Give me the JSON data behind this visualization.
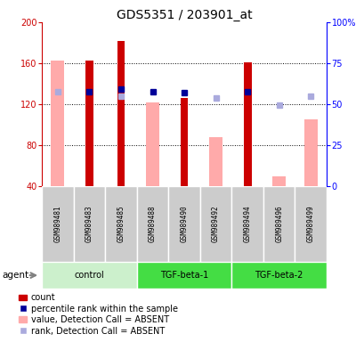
{
  "title": "GDS5351 / 203901_at",
  "samples": [
    "GSM989481",
    "GSM989483",
    "GSM989485",
    "GSM989488",
    "GSM989490",
    "GSM989492",
    "GSM989494",
    "GSM989496",
    "GSM989499"
  ],
  "groups": [
    {
      "label": "control",
      "indices": [
        0,
        1,
        2
      ],
      "color": "#ccf0cc"
    },
    {
      "label": "TGF-beta-1",
      "indices": [
        3,
        4,
        5
      ],
      "color": "#44dd44"
    },
    {
      "label": "TGF-beta-2",
      "indices": [
        6,
        7,
        8
      ],
      "color": "#44dd44"
    }
  ],
  "ylim_left": [
    40,
    200
  ],
  "ylim_right": [
    0,
    100
  ],
  "yticks_left": [
    40,
    80,
    120,
    160,
    200
  ],
  "yticks_right": [
    0,
    25,
    50,
    75,
    100
  ],
  "red_bars": [
    null,
    163,
    182,
    null,
    126,
    null,
    161,
    null,
    null
  ],
  "pink_bars": [
    163,
    null,
    null,
    122,
    null,
    88,
    null,
    50,
    105
  ],
  "blue_squares_val": [
    null,
    132,
    135,
    132,
    131,
    null,
    132,
    null,
    null
  ],
  "lightblue_squares_val": [
    132,
    null,
    128,
    null,
    null,
    126,
    null,
    119,
    128
  ],
  "red_bar_width": 0.25,
  "pink_bar_width": 0.42,
  "sample_bg_color": "#cccccc",
  "red_color": "#cc0000",
  "pink_color": "#ffaaaa",
  "blue_color": "#000099",
  "lightblue_color": "#aaaadd",
  "title_fontsize": 10,
  "tick_fontsize": 7,
  "legend_fontsize": 7
}
